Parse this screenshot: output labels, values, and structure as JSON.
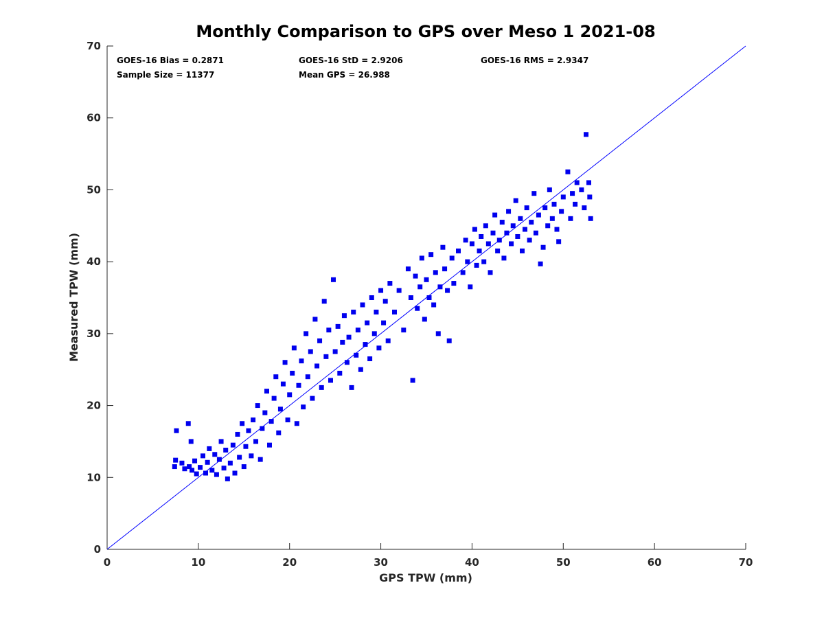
{
  "chart_data": {
    "type": "scatter",
    "title": "Monthly Comparison to GPS over Meso 1 2021-08",
    "xlabel": "GPS TPW (mm)",
    "ylabel": "Measured TPW (mm)",
    "xlim": [
      0,
      70
    ],
    "ylim": [
      0,
      70
    ],
    "xticks": [
      0,
      10,
      20,
      30,
      40,
      50,
      60,
      70
    ],
    "yticks": [
      0,
      10,
      20,
      30,
      40,
      50,
      60,
      70
    ],
    "grid": false,
    "legend": "none",
    "marker": "square",
    "point_color": "#0000ee",
    "reference_line": {
      "from": [
        0,
        0
      ],
      "to": [
        70,
        70
      ],
      "color": "#0000ff"
    },
    "stats": [
      {
        "label": "GOES-16 Bias = 0.2871"
      },
      {
        "label": "GOES-16 StD = 2.9206"
      },
      {
        "label": "GOES-16 RMS = 2.9347"
      },
      {
        "label": "Sample Size = 11377"
      },
      {
        "label": "Mean GPS = 26.988"
      }
    ],
    "series": [
      {
        "values": [
          [
            7.4,
            11.5
          ],
          [
            7.5,
            12.4
          ],
          [
            7.6,
            16.5
          ],
          [
            8.2,
            12.0
          ],
          [
            8.5,
            11.2
          ],
          [
            8.9,
            17.5
          ],
          [
            9.0,
            11.5
          ],
          [
            9.3,
            11.0
          ],
          [
            9.2,
            15.0
          ],
          [
            9.6,
            12.3
          ],
          [
            9.8,
            10.5
          ],
          [
            10.2,
            11.4
          ],
          [
            10.5,
            13.0
          ],
          [
            10.8,
            10.6
          ],
          [
            11.0,
            12.1
          ],
          [
            11.2,
            14.0
          ],
          [
            11.5,
            11.0
          ],
          [
            11.8,
            13.2
          ],
          [
            12.0,
            10.4
          ],
          [
            12.3,
            12.5
          ],
          [
            12.5,
            15.0
          ],
          [
            12.8,
            11.3
          ],
          [
            13.0,
            13.8
          ],
          [
            13.2,
            9.8
          ],
          [
            13.5,
            12.0
          ],
          [
            13.8,
            14.5
          ],
          [
            14.0,
            10.6
          ],
          [
            14.3,
            16.0
          ],
          [
            14.5,
            12.8
          ],
          [
            14.8,
            17.5
          ],
          [
            15.0,
            11.5
          ],
          [
            15.2,
            14.3
          ],
          [
            15.5,
            16.5
          ],
          [
            15.8,
            13.0
          ],
          [
            16.0,
            18.0
          ],
          [
            16.3,
            15.0
          ],
          [
            16.5,
            20.0
          ],
          [
            16.8,
            12.5
          ],
          [
            17.0,
            16.8
          ],
          [
            17.3,
            19.0
          ],
          [
            17.5,
            22.0
          ],
          [
            17.8,
            14.5
          ],
          [
            18.0,
            17.8
          ],
          [
            18.3,
            21.0
          ],
          [
            18.5,
            24.0
          ],
          [
            18.8,
            16.2
          ],
          [
            19.0,
            19.5
          ],
          [
            19.3,
            23.0
          ],
          [
            19.5,
            26.0
          ],
          [
            19.8,
            18.0
          ],
          [
            20.0,
            21.5
          ],
          [
            20.3,
            24.5
          ],
          [
            20.5,
            28.0
          ],
          [
            20.8,
            17.5
          ],
          [
            21.0,
            22.8
          ],
          [
            21.3,
            26.2
          ],
          [
            21.5,
            19.8
          ],
          [
            21.8,
            30.0
          ],
          [
            22.0,
            24.0
          ],
          [
            22.3,
            27.5
          ],
          [
            22.5,
            21.0
          ],
          [
            22.8,
            32.0
          ],
          [
            23.0,
            25.5
          ],
          [
            23.3,
            29.0
          ],
          [
            23.5,
            22.5
          ],
          [
            23.8,
            34.5
          ],
          [
            24.0,
            26.8
          ],
          [
            24.3,
            30.5
          ],
          [
            24.5,
            23.5
          ],
          [
            24.8,
            37.5
          ],
          [
            25.0,
            27.5
          ],
          [
            25.3,
            31.0
          ],
          [
            25.5,
            24.5
          ],
          [
            25.8,
            28.8
          ],
          [
            26.0,
            32.5
          ],
          [
            26.3,
            26.0
          ],
          [
            26.5,
            29.5
          ],
          [
            26.8,
            22.5
          ],
          [
            27.0,
            33.0
          ],
          [
            27.3,
            27.0
          ],
          [
            27.5,
            30.5
          ],
          [
            27.8,
            25.0
          ],
          [
            28.0,
            34.0
          ],
          [
            28.3,
            28.5
          ],
          [
            28.5,
            31.5
          ],
          [
            28.8,
            26.5
          ],
          [
            29.0,
            35.0
          ],
          [
            29.3,
            30.0
          ],
          [
            29.5,
            33.0
          ],
          [
            29.8,
            28.0
          ],
          [
            30.0,
            36.0
          ],
          [
            30.3,
            31.5
          ],
          [
            30.5,
            34.5
          ],
          [
            30.8,
            29.0
          ],
          [
            31.0,
            37.0
          ],
          [
            31.5,
            33.0
          ],
          [
            32.0,
            36.0
          ],
          [
            32.5,
            30.5
          ],
          [
            33.0,
            39.0
          ],
          [
            33.3,
            35.0
          ],
          [
            33.5,
            23.5
          ],
          [
            33.8,
            38.0
          ],
          [
            34.0,
            33.5
          ],
          [
            34.3,
            36.5
          ],
          [
            34.5,
            40.5
          ],
          [
            34.8,
            32.0
          ],
          [
            35.0,
            37.5
          ],
          [
            35.3,
            35.0
          ],
          [
            35.5,
            41.0
          ],
          [
            35.8,
            34.0
          ],
          [
            36.0,
            38.5
          ],
          [
            36.3,
            30.0
          ],
          [
            36.5,
            36.5
          ],
          [
            36.8,
            42.0
          ],
          [
            37.0,
            39.0
          ],
          [
            37.3,
            36.0
          ],
          [
            37.5,
            29.0
          ],
          [
            37.8,
            40.5
          ],
          [
            38.0,
            37.0
          ],
          [
            38.5,
            41.5
          ],
          [
            39.0,
            38.5
          ],
          [
            39.3,
            43.0
          ],
          [
            39.5,
            40.0
          ],
          [
            39.8,
            36.5
          ],
          [
            40.0,
            42.5
          ],
          [
            40.3,
            44.5
          ],
          [
            40.5,
            39.5
          ],
          [
            40.8,
            41.5
          ],
          [
            41.0,
            43.5
          ],
          [
            41.3,
            40.0
          ],
          [
            41.5,
            45.0
          ],
          [
            41.8,
            42.5
          ],
          [
            42.0,
            38.5
          ],
          [
            42.3,
            44.0
          ],
          [
            42.5,
            46.5
          ],
          [
            42.8,
            41.5
          ],
          [
            43.0,
            43.0
          ],
          [
            43.3,
            45.5
          ],
          [
            43.5,
            40.5
          ],
          [
            43.8,
            44.0
          ],
          [
            44.0,
            47.0
          ],
          [
            44.3,
            42.5
          ],
          [
            44.5,
            45.0
          ],
          [
            44.8,
            48.5
          ],
          [
            45.0,
            43.5
          ],
          [
            45.3,
            46.0
          ],
          [
            45.5,
            41.5
          ],
          [
            45.8,
            44.5
          ],
          [
            46.0,
            47.5
          ],
          [
            46.3,
            43.0
          ],
          [
            46.5,
            45.5
          ],
          [
            46.8,
            49.5
          ],
          [
            47.0,
            44.0
          ],
          [
            47.3,
            46.5
          ],
          [
            47.5,
            39.7
          ],
          [
            47.8,
            42.0
          ],
          [
            48.0,
            47.5
          ],
          [
            48.3,
            45.0
          ],
          [
            48.5,
            50.0
          ],
          [
            48.8,
            46.0
          ],
          [
            49.0,
            48.0
          ],
          [
            49.3,
            44.5
          ],
          [
            49.5,
            42.8
          ],
          [
            49.8,
            47.0
          ],
          [
            50.0,
            49.0
          ],
          [
            50.5,
            52.5
          ],
          [
            50.8,
            46.0
          ],
          [
            51.0,
            49.5
          ],
          [
            51.3,
            48.0
          ],
          [
            51.5,
            51.0
          ],
          [
            52.0,
            50.0
          ],
          [
            52.3,
            47.5
          ],
          [
            52.5,
            57.7
          ],
          [
            52.8,
            51.0
          ],
          [
            53.0,
            46.0
          ],
          [
            52.9,
            49.0
          ]
        ]
      }
    ]
  }
}
